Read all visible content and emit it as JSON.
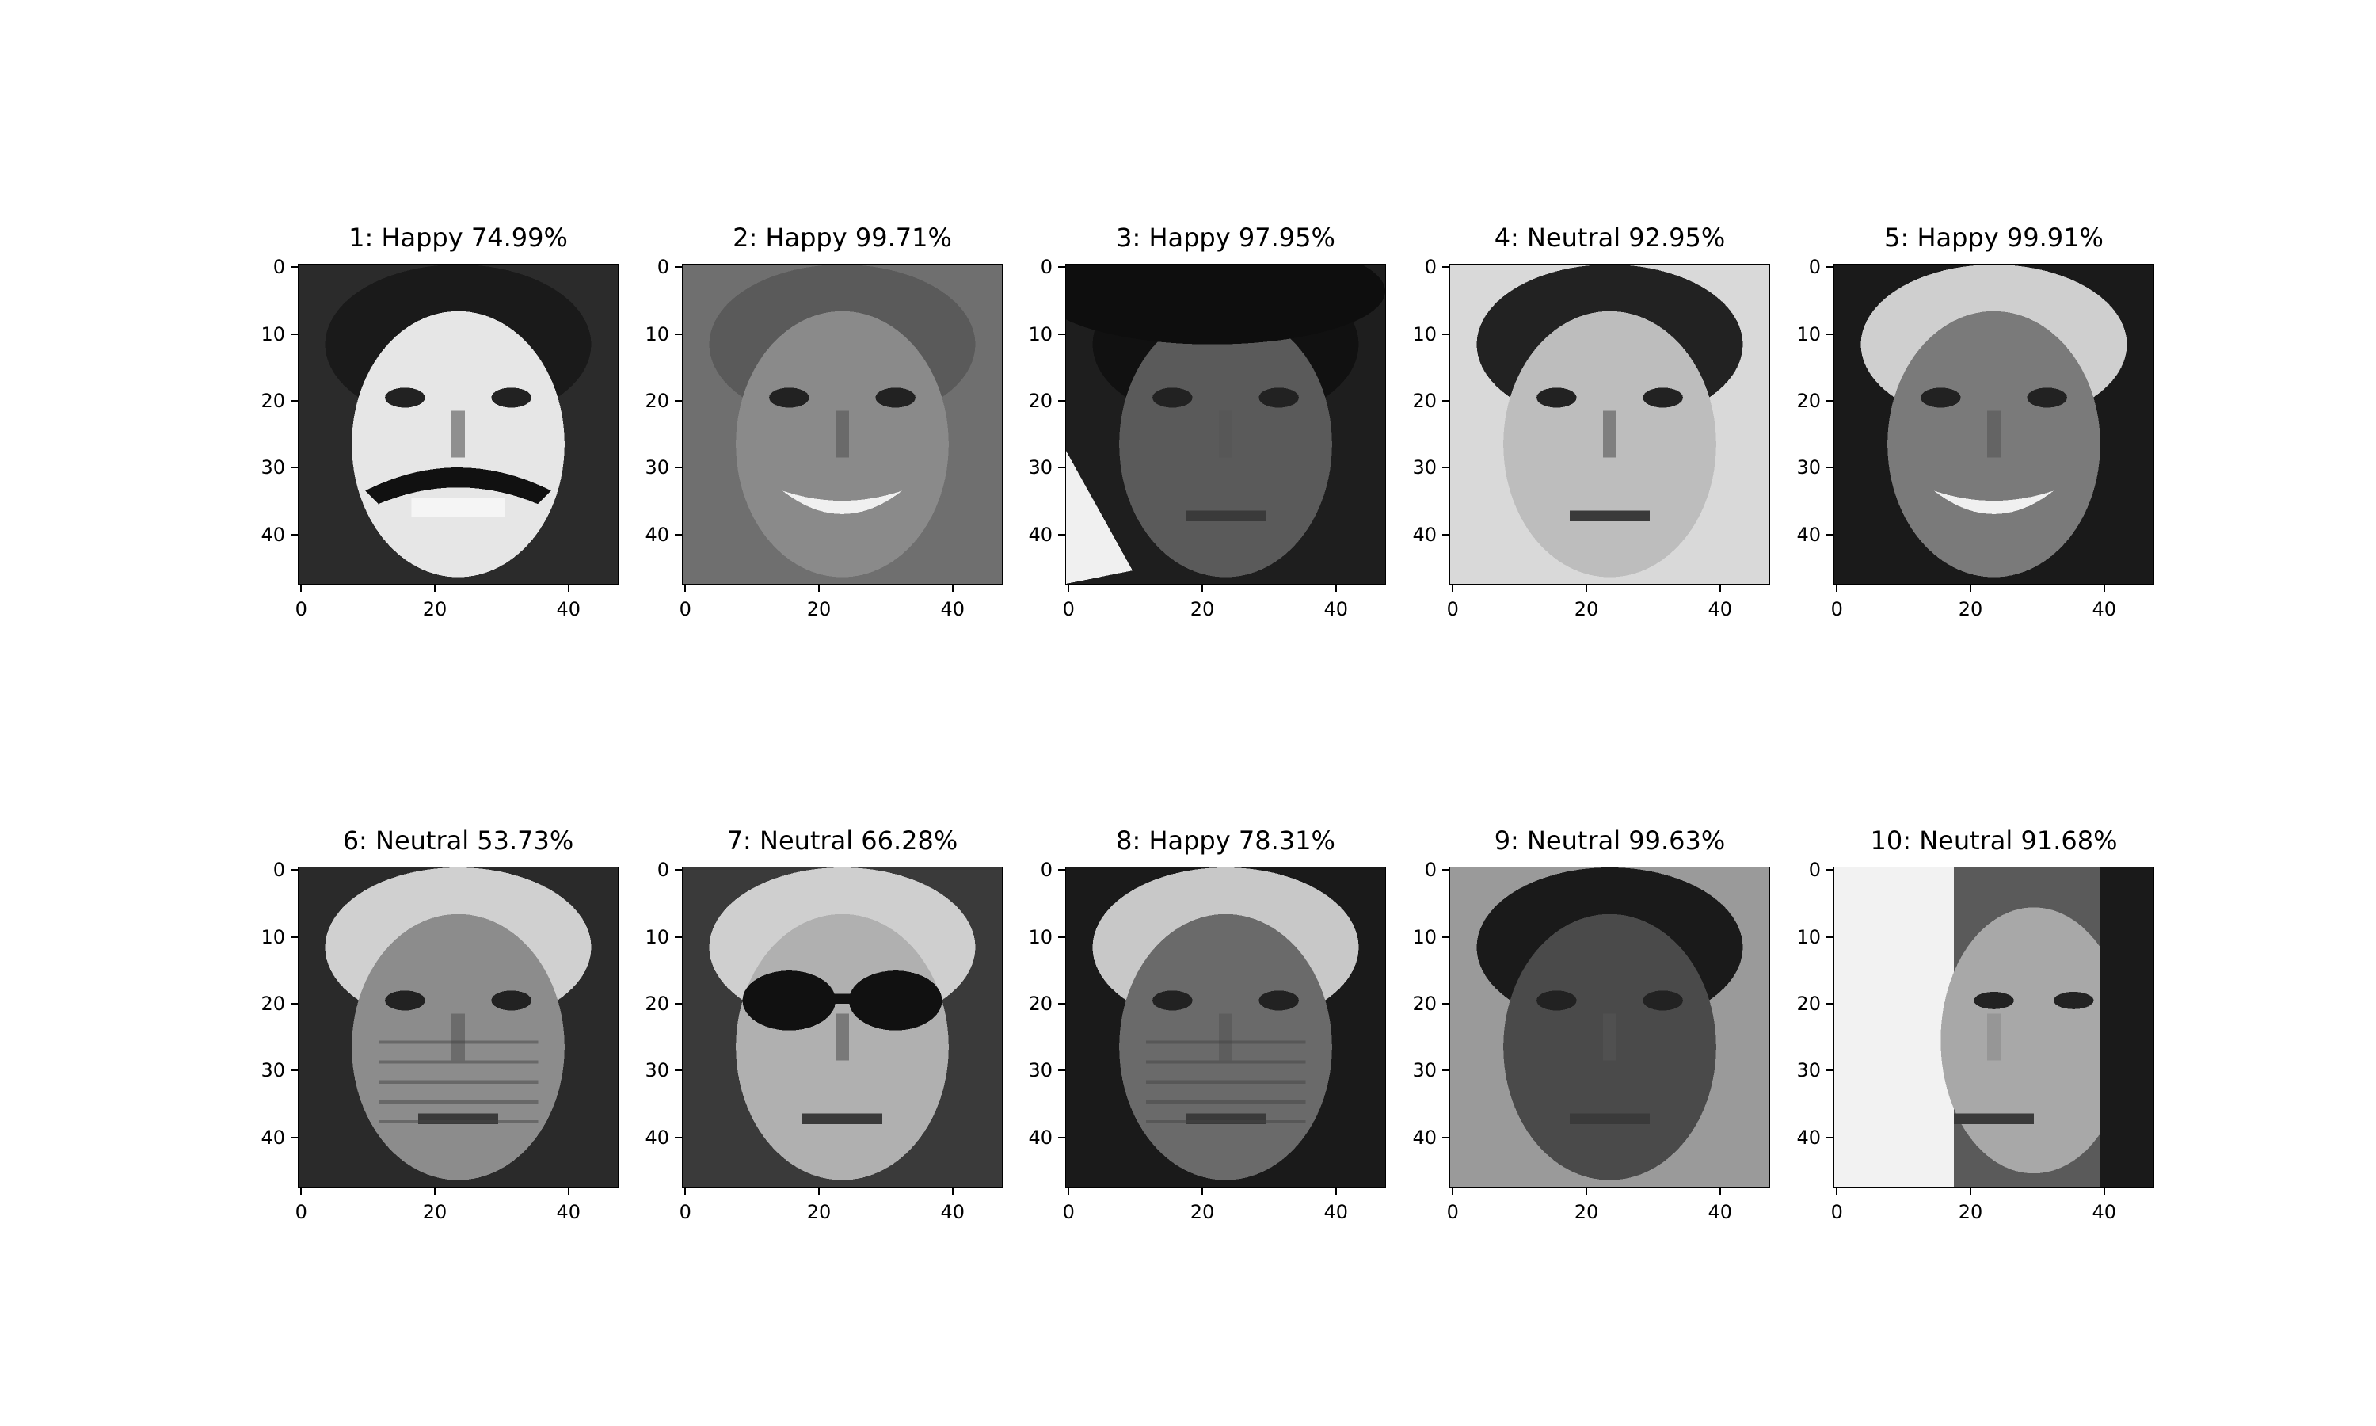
{
  "panels": [
    {
      "index": 1,
      "title": "1: Happy 74.99%",
      "label": "Happy",
      "confidence_pct": 74.99
    },
    {
      "index": 2,
      "title": "2: Happy 99.71%",
      "label": "Happy",
      "confidence_pct": 99.71
    },
    {
      "index": 3,
      "title": "3: Happy 97.95%",
      "label": "Happy",
      "confidence_pct": 97.95
    },
    {
      "index": 4,
      "title": "4: Neutral 92.95%",
      "label": "Neutral",
      "confidence_pct": 92.95
    },
    {
      "index": 5,
      "title": "5: Happy 99.91%",
      "label": "Happy",
      "confidence_pct": 99.91
    },
    {
      "index": 6,
      "title": "6: Neutral 53.73%",
      "label": "Neutral",
      "confidence_pct": 53.73
    },
    {
      "index": 7,
      "title": "7: Neutral 66.28%",
      "label": "Neutral",
      "confidence_pct": 66.28
    },
    {
      "index": 8,
      "title": "8: Happy 78.31%",
      "label": "Happy",
      "confidence_pct": 78.31
    },
    {
      "index": 9,
      "title": "9: Neutral 99.63%",
      "label": "Neutral",
      "confidence_pct": 99.63
    },
    {
      "index": 10,
      "title": "10: Neutral 91.68%",
      "label": "Neutral",
      "confidence_pct": 91.68
    }
  ],
  "axes": {
    "x_ticks": [
      "0",
      "20",
      "40"
    ],
    "y_ticks": [
      "0",
      "10",
      "20",
      "30",
      "40"
    ]
  },
  "colors": {
    "axis": "#000000",
    "background": "#ffffff"
  }
}
